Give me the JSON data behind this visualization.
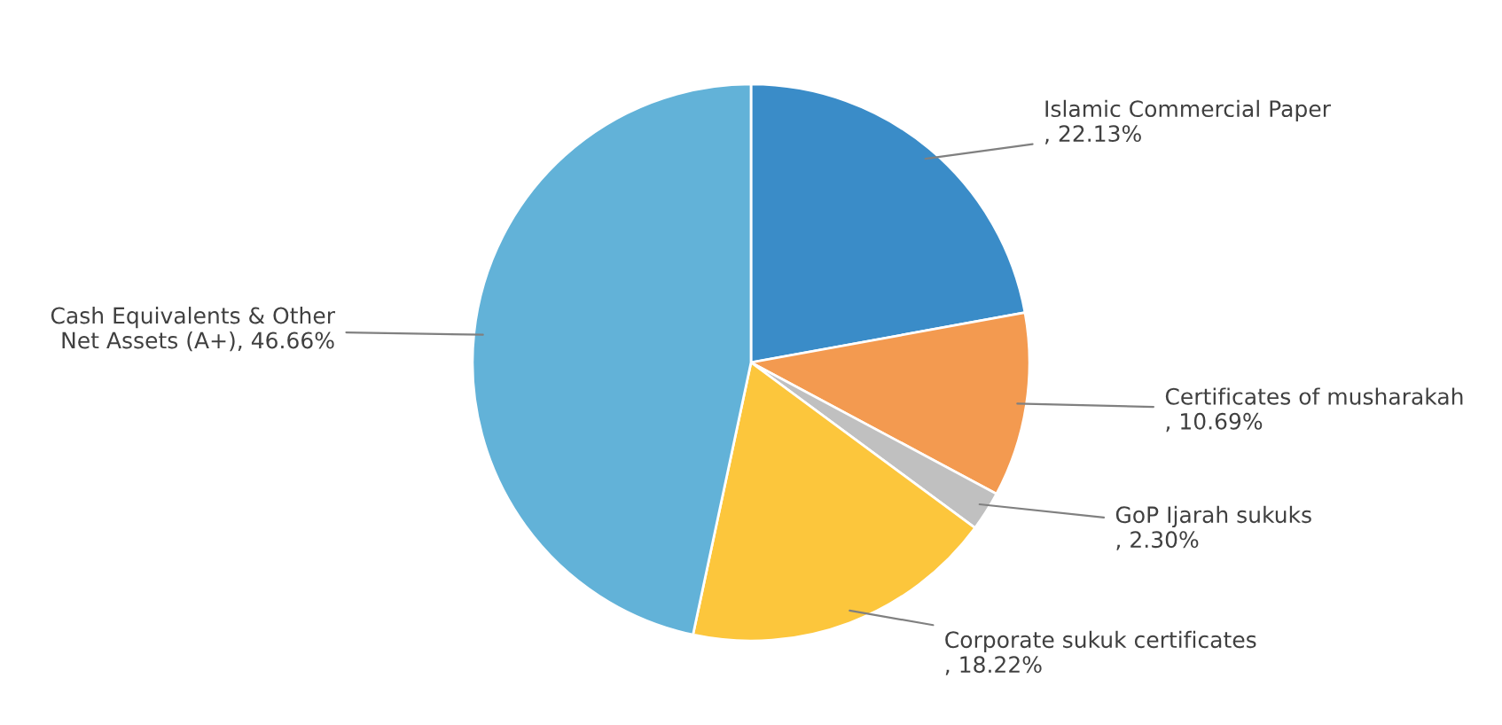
{
  "chart_data": {
    "type": "pie",
    "categories": [
      "Islamic Commercial Paper",
      "Certificates of musharakah",
      "GoP Ijarah sukuks",
      "Corporate sukuk certificates",
      "Cash Equivalents & Other\nNet Assets (A+)"
    ],
    "values": [
      22.13,
      10.69,
      2.3,
      18.22,
      46.66
    ],
    "value_labels": [
      ", 22.13%",
      ", 10.69%",
      ", 2.30%",
      ", 18.22%",
      ", 46.66%"
    ],
    "colors": [
      "#3a8cc8",
      "#f39a50",
      "#c0c0c0",
      "#fcc63c",
      "#62b2d8"
    ],
    "legend": false
  }
}
